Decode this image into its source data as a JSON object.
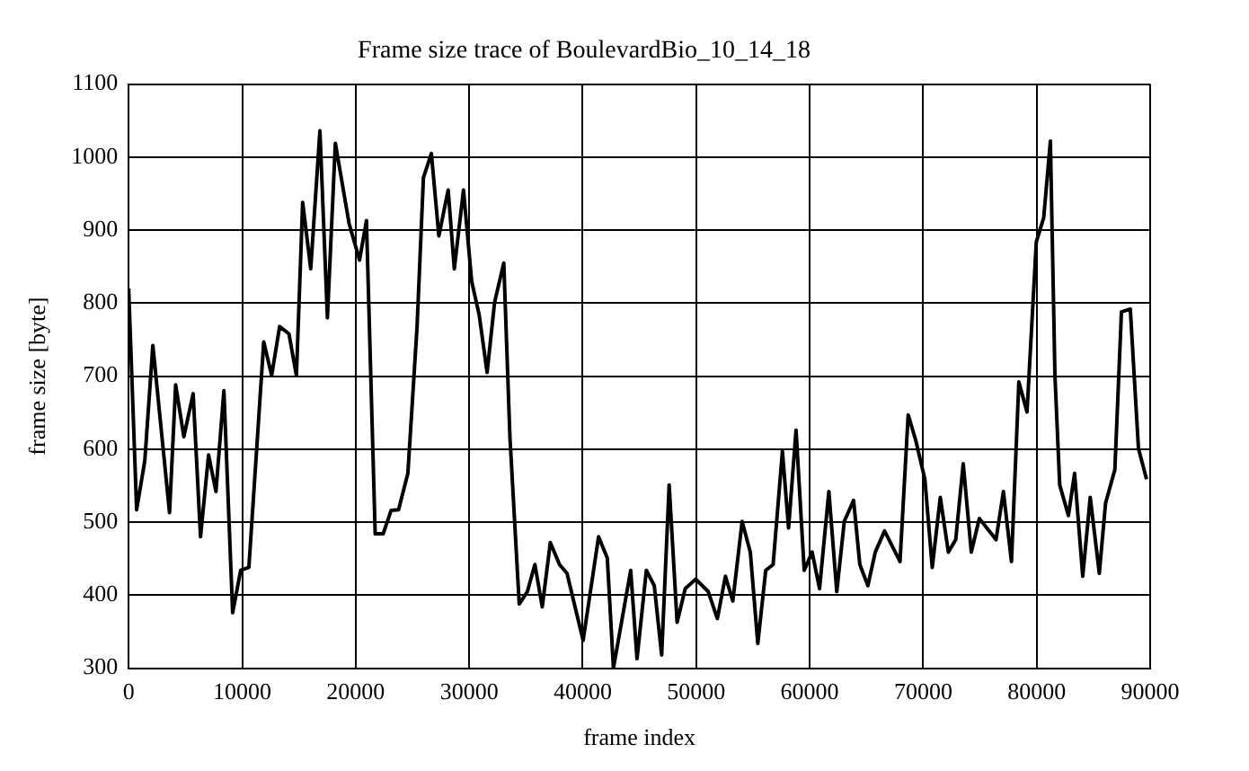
{
  "chart_data": {
    "type": "line",
    "title": "Frame size trace of BoulevardBio_10_14_18",
    "xlabel": "frame index",
    "ylabel": "frame size [byte]",
    "xlim": [
      0,
      90000
    ],
    "xticks": [
      0,
      10000,
      20000,
      30000,
      40000,
      50000,
      60000,
      70000,
      80000,
      90000
    ],
    "ylim": [
      300,
      1100
    ],
    "yticks": [
      300,
      400,
      500,
      600,
      700,
      800,
      900,
      1000,
      1100
    ],
    "grid": true,
    "legend": false,
    "marker": "none",
    "line_style": "solid",
    "x": [
      0,
      700,
      1420,
      2130,
      3600,
      4140,
      4860,
      5680,
      6330,
      7040,
      7690,
      8390,
      9160,
      9870,
      10590,
      11900,
      12600,
      13300,
      14120,
      14780,
      15330,
      16040,
      16850,
      17510,
      18210,
      19420,
      20340,
      20950,
      21720,
      22420,
      23120,
      23780,
      24600,
      25410,
      25970,
      26670,
      27330,
      28150,
      28690,
      29500,
      30220,
      30880,
      31580,
      32240,
      33050,
      33590,
      34410,
      35130,
      35790,
      36440,
      37150,
      37960,
      38620,
      40040,
      41400,
      42170,
      42710,
      44230,
      44790,
      45610,
      46310,
      46960,
      47620,
      48320,
      49040,
      49960,
      51060,
      51870,
      52580,
      53230,
      54050,
      54770,
      55430,
      56130,
      56780,
      57600,
      58140,
      58800,
      59520,
      60220,
      60870,
      61690,
      62390,
      63050,
      63870,
      64420,
      65130,
      65780,
      66600,
      67960,
      68680,
      69330,
      70150,
      70800,
      71510,
      72220,
      72870,
      73530,
      74240,
      74950,
      76420,
      77070,
      77780,
      78430,
      79150,
      79970,
      80620,
      81210,
      81610,
      82030,
      82800,
      83340,
      84060,
      84720,
      85520,
      86070,
      86890,
      87470,
      88250,
      88970,
      89680
    ],
    "series": [
      {
        "color": "#000000",
        "values": [
          820,
          517,
          584,
          742,
          513,
          688,
          617,
          676,
          480,
          592,
          542,
          680,
          376,
          434,
          438,
          747,
          701,
          768,
          758,
          701,
          938,
          847,
          1036,
          780,
          1019,
          909,
          859,
          913,
          484,
          484,
          516,
          517,
          567,
          768,
          972,
          1005,
          892,
          955,
          847,
          955,
          830,
          784,
          705,
          801,
          855,
          617,
          388,
          405,
          442,
          384,
          472,
          442,
          430,
          338,
          480,
          451,
          300,
          434,
          313,
          434,
          413,
          318,
          551,
          363,
          409,
          422,
          405,
          368,
          426,
          392,
          501,
          459,
          334,
          434,
          442,
          597,
          492,
          626,
          434,
          459,
          409,
          542,
          405,
          501,
          530,
          442,
          413,
          459,
          488,
          446,
          647,
          613,
          559,
          438,
          534,
          459,
          476,
          580,
          459,
          505,
          476,
          542,
          446,
          692,
          651,
          884,
          917,
          1022,
          701,
          551,
          509,
          567,
          426,
          534,
          430,
          526,
          572,
          788,
          792,
          601,
          559
        ]
      }
    ]
  }
}
